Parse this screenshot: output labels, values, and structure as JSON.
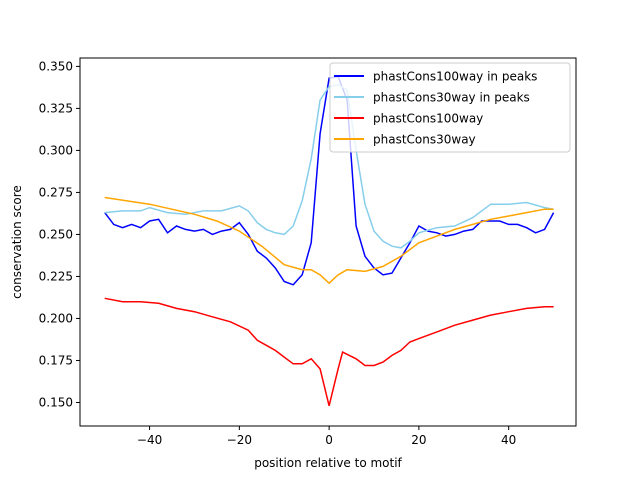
{
  "chart_data": {
    "type": "line",
    "title": "",
    "xlabel": "position relative to motif",
    "ylabel": "conservation score",
    "xlim": [
      -55.5,
      55
    ],
    "ylim": [
      0.136,
      0.355
    ],
    "xticks": [
      -40,
      -20,
      0,
      20,
      40
    ],
    "xtick_labels": [
      "−40",
      "−20",
      "0",
      "20",
      "40"
    ],
    "yticks": [
      0.15,
      0.175,
      0.2,
      0.225,
      0.25,
      0.275,
      0.3,
      0.325,
      0.35
    ],
    "ytick_labels": [
      "0.150",
      "0.175",
      "0.200",
      "0.225",
      "0.250",
      "0.275",
      "0.300",
      "0.325",
      "0.350"
    ],
    "grid": false,
    "legend_position": "top-right",
    "series": [
      {
        "name": "phastCons100way in peaks",
        "color": "#0000ff",
        "x": [
          -50,
          -48,
          -46,
          -44,
          -42,
          -40,
          -38,
          -36,
          -34,
          -32,
          -30,
          -28,
          -26,
          -24,
          -22,
          -20,
          -18,
          -16,
          -14,
          -12,
          -10,
          -8,
          -6,
          -4,
          -2,
          0,
          2,
          4,
          6,
          8,
          10,
          12,
          14,
          16,
          18,
          20,
          22,
          24,
          26,
          28,
          30,
          32,
          34,
          36,
          38,
          40,
          42,
          44,
          46,
          48,
          50
        ],
        "y": [
          0.263,
          0.256,
          0.254,
          0.256,
          0.254,
          0.258,
          0.259,
          0.251,
          0.255,
          0.253,
          0.252,
          0.253,
          0.25,
          0.252,
          0.253,
          0.257,
          0.25,
          0.24,
          0.236,
          0.23,
          0.222,
          0.22,
          0.226,
          0.245,
          0.31,
          0.343,
          0.344,
          0.33,
          0.255,
          0.237,
          0.23,
          0.226,
          0.227,
          0.236,
          0.245,
          0.255,
          0.252,
          0.251,
          0.249,
          0.25,
          0.252,
          0.253,
          0.258,
          0.258,
          0.258,
          0.256,
          0.256,
          0.254,
          0.251,
          0.253,
          0.263
        ]
      },
      {
        "name": "phastCons30way in peaks",
        "color": "#87ceeb",
        "x": [
          -50,
          -46,
          -42,
          -40,
          -36,
          -32,
          -28,
          -24,
          -20,
          -18,
          -16,
          -14,
          -12,
          -10,
          -8,
          -6,
          -4,
          -2,
          0,
          2,
          4,
          6,
          8,
          10,
          12,
          14,
          16,
          18,
          20,
          24,
          28,
          32,
          36,
          40,
          44,
          48,
          50
        ],
        "y": [
          0.263,
          0.264,
          0.264,
          0.266,
          0.263,
          0.262,
          0.264,
          0.264,
          0.267,
          0.264,
          0.257,
          0.253,
          0.251,
          0.25,
          0.255,
          0.27,
          0.295,
          0.33,
          0.338,
          0.339,
          0.336,
          0.3,
          0.268,
          0.252,
          0.246,
          0.243,
          0.242,
          0.246,
          0.251,
          0.254,
          0.255,
          0.26,
          0.268,
          0.268,
          0.269,
          0.266,
          0.265
        ]
      },
      {
        "name": "phastCons100way",
        "color": "#ff0000",
        "x": [
          -50,
          -46,
          -42,
          -38,
          -34,
          -30,
          -26,
          -22,
          -18,
          -16,
          -14,
          -12,
          -10,
          -8,
          -6,
          -4,
          -2,
          0,
          2,
          3,
          6,
          8,
          10,
          12,
          14,
          16,
          18,
          20,
          24,
          28,
          32,
          36,
          40,
          44,
          48,
          50
        ],
        "y": [
          0.212,
          0.21,
          0.21,
          0.209,
          0.206,
          0.204,
          0.201,
          0.198,
          0.193,
          0.187,
          0.184,
          0.181,
          0.177,
          0.173,
          0.173,
          0.176,
          0.17,
          0.148,
          0.17,
          0.18,
          0.176,
          0.172,
          0.172,
          0.174,
          0.178,
          0.181,
          0.186,
          0.188,
          0.192,
          0.196,
          0.199,
          0.202,
          0.204,
          0.206,
          0.207,
          0.207
        ]
      },
      {
        "name": "phastCons30way",
        "color": "#ffa500",
        "x": [
          -50,
          -40,
          -30,
          -25,
          -20,
          -15,
          -10,
          -6,
          -4,
          -2,
          0,
          2,
          4,
          8,
          12,
          16,
          20,
          24,
          28,
          32,
          36,
          40,
          44,
          48,
          50
        ],
        "y": [
          0.272,
          0.268,
          0.262,
          0.258,
          0.252,
          0.243,
          0.232,
          0.229,
          0.229,
          0.226,
          0.221,
          0.226,
          0.229,
          0.228,
          0.231,
          0.237,
          0.245,
          0.249,
          0.253,
          0.256,
          0.259,
          0.261,
          0.263,
          0.265,
          0.265
        ]
      }
    ]
  }
}
